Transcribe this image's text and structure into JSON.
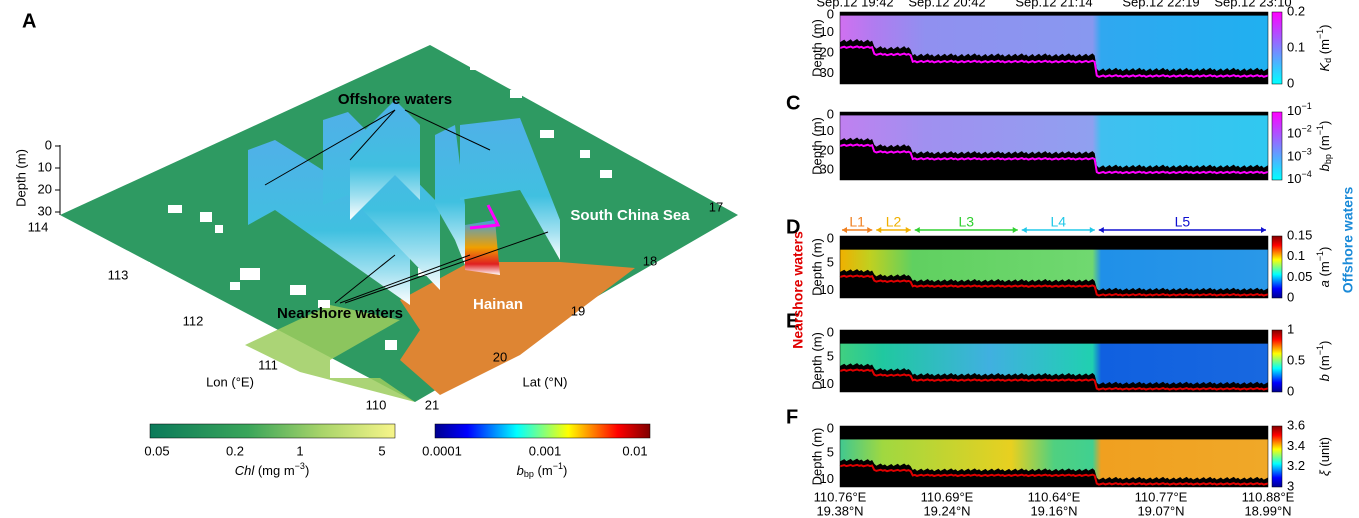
{
  "panel_a": {
    "label": "A",
    "annotations": {
      "offshore": "Offshore waters",
      "scs": "South China Sea",
      "nearshore": "Nearshore waters",
      "hainan": "Hainan"
    },
    "depth_axis": {
      "title": "Depth (m)",
      "ticks": [
        "0",
        "10",
        "20",
        "30"
      ]
    },
    "lon_axis": {
      "title": "Lon (°E)",
      "ticks": [
        "114",
        "113",
        "112",
        "111",
        "110"
      ]
    },
    "lat_axis": {
      "title": "Lat (°N)",
      "ticks": [
        "17",
        "18",
        "19",
        "20",
        "21"
      ]
    },
    "chl_colorbar": {
      "ticks": [
        "0.05",
        "0.2",
        "1",
        "5"
      ],
      "title": {
        "var": "Chl",
        "unit_pre": " (mg m",
        "unit_exp": "−3",
        "unit_post": ")"
      }
    },
    "bbp_colorbar": {
      "ticks": [
        "0.0001",
        "0.001",
        "0.01"
      ],
      "title": {
        "var": "b",
        "sub": "bp",
        "unit_pre": " (m",
        "unit_exp": "−1",
        "unit_post": ")"
      }
    }
  },
  "right_panel": {
    "timestamps": [
      "Sep.12 19:42",
      "Sep.12 20:42",
      "Sep.12 21:14",
      "Sep.12 22:19",
      "Sep.12 23:10"
    ],
    "depth_title": "Depth (m)",
    "side_labels": {
      "nearshore": "Nearshore waters",
      "offshore": "Offshore waters"
    },
    "segments": [
      "L1",
      "L2",
      "L3",
      "L4",
      "L5"
    ],
    "panels": [
      {
        "depth_ticks": [
          "0",
          "10",
          "20",
          "30"
        ],
        "colorbar_ticks": [
          "0",
          "0.1",
          "0.2"
        ],
        "colorbar_title": {
          "var": "K",
          "sub": "d",
          "unit_pre": " (m",
          "unit_exp": "−1",
          "unit_post": ")"
        }
      },
      {
        "label": "C",
        "depth_ticks": [
          "0",
          "10",
          "20",
          "30"
        ],
        "colorbar_ticks": [
          {
            "base": "10",
            "exp": "−4"
          },
          {
            "base": "10",
            "exp": "−3"
          },
          {
            "base": "10",
            "exp": "−2"
          },
          {
            "base": "10",
            "exp": "−1"
          }
        ],
        "colorbar_title": {
          "var": "b",
          "sub": "bp",
          "unit_pre": " (m",
          "unit_exp": "−1",
          "unit_post": ")"
        }
      },
      {
        "label": "D",
        "depth_ticks": [
          "0",
          "5",
          "10"
        ],
        "colorbar_ticks": [
          "0",
          "0.05",
          "0.1",
          "0.15"
        ],
        "colorbar_title": {
          "var": "a",
          "unit_pre": " (m",
          "unit_exp": "−1",
          "unit_post": ")"
        }
      },
      {
        "label": "E",
        "depth_ticks": [
          "0",
          "5",
          "10"
        ],
        "colorbar_ticks": [
          "0",
          "0.5",
          "1"
        ],
        "colorbar_title": {
          "var": "b",
          "unit_pre": " (m",
          "unit_exp": "−1",
          "unit_post": ")"
        }
      },
      {
        "label": "F",
        "depth_ticks": [
          "0",
          "5",
          "10"
        ],
        "colorbar_ticks": [
          "3",
          "3.2",
          "3.4",
          "3.6"
        ],
        "colorbar_title": {
          "var": "ξ",
          "unit_pre": " (unit)"
        }
      }
    ],
    "x_labels": [
      {
        "lon": "110.76°E",
        "lat": "19.38°N"
      },
      {
        "lon": "110.69°E",
        "lat": "19.24°N"
      },
      {
        "lon": "110.64°E",
        "lat": "19.16°N"
      },
      {
        "lon": "110.77°E",
        "lat": "19.07°N"
      },
      {
        "lon": "110.88°E",
        "lat": "18.99°N"
      }
    ]
  }
}
